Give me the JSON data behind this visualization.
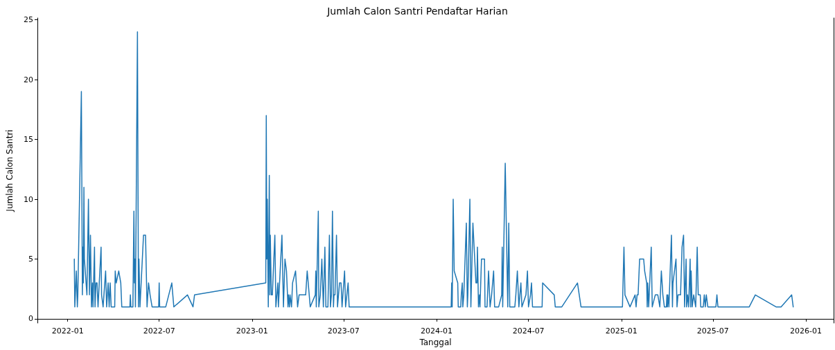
{
  "chart_data": {
    "type": "line",
    "title": "Jumlah Calon Santri Pendaftar Harian",
    "xlabel": "Tanggal",
    "ylabel": "Jumlah Calon Santri",
    "x": [
      "2022-01-14",
      "2022-01-15",
      "2022-01-18",
      "2022-01-20",
      "2022-01-21",
      "2022-01-28",
      "2022-01-30",
      "2022-01-31",
      "2022-02-01",
      "2022-02-02",
      "2022-02-03",
      "2022-02-08",
      "2022-02-11",
      "2022-02-13",
      "2022-02-15",
      "2022-02-17",
      "2022-02-19",
      "2022-02-20",
      "2022-02-23",
      "2022-02-24",
      "2022-02-26",
      "2022-02-28",
      "2022-03-02",
      "2022-03-08",
      "2022-03-09",
      "2022-03-12",
      "2022-03-17",
      "2022-03-19",
      "2022-03-22",
      "2022-03-24",
      "2022-03-26",
      "2022-03-28",
      "2022-04-04",
      "2022-04-05",
      "2022-04-07",
      "2022-04-12",
      "2022-04-16",
      "2022-04-18",
      "2022-05-04",
      "2022-05-05",
      "2022-05-06",
      "2022-05-10",
      "2022-05-12",
      "2022-05-13",
      "2022-05-14",
      "2022-05-15",
      "2022-05-19",
      "2022-05-21",
      "2022-05-22",
      "2022-05-24",
      "2022-05-31",
      "2022-06-04",
      "2022-06-07",
      "2022-06-10",
      "2022-06-13",
      "2022-06-17",
      "2022-06-30",
      "2022-07-01",
      "2022-07-02",
      "2022-07-14",
      "2022-07-26",
      "2022-07-30",
      "2022-08-26",
      "2022-09-06",
      "2022-09-09",
      "2023-01-28",
      "2023-01-29",
      "2023-01-30",
      "2023-01-31",
      "2023-02-02",
      "2023-02-04",
      "2023-02-05",
      "2023-02-06",
      "2023-02-08",
      "2023-02-10",
      "2023-02-15",
      "2023-02-17",
      "2023-02-21",
      "2023-02-22",
      "2023-03-01",
      "2023-03-04",
      "2023-03-07",
      "2023-03-10",
      "2023-03-13",
      "2023-03-14",
      "2023-03-16",
      "2023-03-17",
      "2023-03-20",
      "2023-03-22",
      "2023-03-28",
      "2023-04-01",
      "2023-04-04",
      "2023-04-17",
      "2023-04-20",
      "2023-04-26",
      "2023-05-06",
      "2023-05-07",
      "2023-05-08",
      "2023-05-12",
      "2023-05-13",
      "2023-05-16",
      "2023-05-19",
      "2023-05-22",
      "2023-05-25",
      "2023-05-27",
      "2023-05-31",
      "2023-06-03",
      "2023-06-05",
      "2023-06-07",
      "2023-06-09",
      "2023-06-11",
      "2023-06-12",
      "2023-06-14",
      "2023-06-17",
      "2023-06-19",
      "2023-06-21",
      "2023-06-23",
      "2023-06-26",
      "2023-06-28",
      "2023-07-03",
      "2023-07-05",
      "2023-07-10",
      "2023-07-12",
      "2024-01-30",
      "2024-01-31",
      "2024-02-01",
      "2024-02-03",
      "2024-02-05",
      "2024-02-12",
      "2024-02-13",
      "2024-02-18",
      "2024-02-19",
      "2024-02-21",
      "2024-02-22",
      "2024-02-24",
      "2024-02-29",
      "2024-03-02",
      "2024-03-03",
      "2024-03-07",
      "2024-03-09",
      "2024-03-13",
      "2024-03-19",
      "2024-03-21",
      "2024-03-22",
      "2024-03-24",
      "2024-03-26",
      "2024-03-27",
      "2024-03-30",
      "2024-04-05",
      "2024-04-06",
      "2024-04-10",
      "2024-04-11",
      "2024-04-13",
      "2024-04-16",
      "2024-04-19",
      "2024-04-23",
      "2024-04-25",
      "2024-05-03",
      "2024-05-09",
      "2024-05-10",
      "2024-05-11",
      "2024-05-16",
      "2024-05-21",
      "2024-05-23",
      "2024-05-25",
      "2024-06-04",
      "2024-06-06",
      "2024-06-09",
      "2024-06-12",
      "2024-06-16",
      "2024-06-18",
      "2024-06-26",
      "2024-06-29",
      "2024-07-01",
      "2024-07-05",
      "2024-07-07",
      "2024-07-09",
      "2024-07-28",
      "2024-07-29",
      "2024-08-21",
      "2024-08-23",
      "2024-09-05",
      "2024-10-06",
      "2024-10-13",
      "2025-01-03",
      "2025-01-06",
      "2025-01-08",
      "2025-01-18",
      "2025-01-28",
      "2025-01-30",
      "2025-02-01",
      "2025-02-03",
      "2025-02-06",
      "2025-02-14",
      "2025-02-16",
      "2025-02-20",
      "2025-02-21",
      "2025-02-22",
      "2025-02-24",
      "2025-03-01",
      "2025-03-03",
      "2025-03-09",
      "2025-03-14",
      "2025-03-18",
      "2025-03-21",
      "2025-03-24",
      "2025-03-27",
      "2025-03-31",
      "2025-04-01",
      "2025-04-02",
      "2025-04-03",
      "2025-04-05",
      "2025-04-10",
      "2025-04-12",
      "2025-04-13",
      "2025-04-19",
      "2025-04-21",
      "2025-04-23",
      "2025-04-28",
      "2025-05-01",
      "2025-05-04",
      "2025-05-06",
      "2025-05-09",
      "2025-05-10",
      "2025-05-12",
      "2025-05-14",
      "2025-05-17",
      "2025-05-18",
      "2025-05-19",
      "2025-05-21",
      "2025-05-24",
      "2025-05-28",
      "2025-05-31",
      "2025-06-02",
      "2025-06-06",
      "2025-06-07",
      "2025-06-12",
      "2025-06-14",
      "2025-06-16",
      "2025-06-18",
      "2025-06-21",
      "2025-07-07",
      "2025-07-09",
      "2025-07-11",
      "2025-09-11",
      "2025-09-23",
      "2025-11-03",
      "2025-11-13",
      "2025-12-04",
      "2025-12-07"
    ],
    "series": [
      {
        "color": "#1f77b4",
        "values": [
          5,
          1,
          4,
          1,
          2,
          19,
          2,
          6,
          3,
          11,
          5,
          2,
          10,
          2,
          7,
          1,
          3,
          1,
          6,
          1,
          3,
          3,
          1,
          6,
          2,
          1,
          4,
          1,
          3,
          1,
          3,
          1,
          1,
          4,
          3,
          4,
          3,
          1,
          1,
          2,
          1,
          1,
          9,
          3,
          5,
          1,
          24,
          1,
          5,
          1,
          7,
          7,
          1,
          3,
          2,
          1,
          1,
          3,
          1,
          1,
          3,
          1,
          2,
          1,
          2,
          3,
          17,
          5,
          10,
          1,
          12,
          2,
          7,
          2,
          2,
          7,
          1,
          3,
          1,
          7,
          1,
          5,
          4,
          1,
          2,
          1,
          2,
          1,
          3,
          4,
          1,
          2,
          2,
          4,
          1,
          2,
          4,
          1,
          9,
          1,
          2,
          5,
          1,
          6,
          1,
          1,
          7,
          1,
          2,
          9,
          1,
          2,
          2,
          7,
          1,
          2,
          3,
          3,
          1,
          4,
          1,
          3,
          1,
          1,
          3,
          1,
          10,
          4,
          3,
          1,
          1,
          2,
          3,
          1,
          2,
          8,
          1,
          2,
          10,
          1,
          8,
          3,
          3,
          6,
          1,
          2,
          1,
          5,
          5,
          1,
          1,
          2,
          4,
          1,
          2,
          4,
          1,
          1,
          2,
          6,
          1,
          13,
          1,
          8,
          1,
          1,
          2,
          4,
          1,
          3,
          1,
          2,
          4,
          1,
          2,
          3,
          1,
          1,
          3,
          2,
          1,
          1,
          3,
          1,
          1,
          6,
          2,
          1,
          2,
          1,
          2,
          2,
          5,
          5,
          4,
          3,
          1,
          3,
          1,
          6,
          1,
          2,
          2,
          1,
          4,
          2,
          1,
          1,
          2,
          1,
          2,
          1,
          7,
          1,
          3,
          5,
          1,
          2,
          2,
          6,
          7,
          1,
          5,
          1,
          2,
          1,
          5,
          1,
          4,
          1,
          2,
          1,
          6,
          2,
          2,
          1,
          1,
          2,
          1,
          2,
          1,
          1,
          2,
          1,
          1,
          2,
          1,
          1,
          2,
          1
        ]
      }
    ],
    "xlim": [
      "2021-11-02",
      "2026-02-25"
    ],
    "xticks": [
      "2022-01",
      "2022-07",
      "2023-01",
      "2023-07",
      "2024-01",
      "2024-07",
      "2025-01",
      "2025-07",
      "2026-01"
    ],
    "ylim": [
      -0.35,
      25.15
    ],
    "yticks": [
      0,
      5,
      10,
      15,
      20,
      25
    ],
    "grid": false,
    "marker": "none",
    "line_style": "solid"
  }
}
